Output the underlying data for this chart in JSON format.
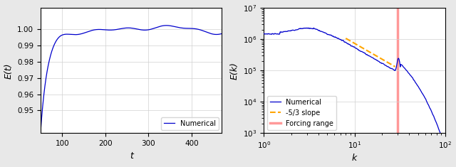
{
  "left": {
    "xlabel": "t",
    "ylabel": "E(t)",
    "xlim": [
      50,
      470
    ],
    "ylim": [
      0.936,
      1.013
    ],
    "yticks": [
      0.95,
      0.96,
      0.97,
      0.98,
      0.99,
      1.0
    ],
    "xticks": [
      100,
      200,
      300,
      400
    ],
    "line_color": "#0000cc",
    "legend_label": "Numerical",
    "legend_loc": "lower right"
  },
  "right": {
    "xlabel": "k",
    "ylabel": "E(k)",
    "xlim": [
      1,
      100
    ],
    "ylim": [
      1000.0,
      10000000.0
    ],
    "line_color": "#0000cc",
    "slope_color": "#FFA500",
    "forcing_color": "#FF9999",
    "forcing_x": 30,
    "legend_labels": [
      "Numerical",
      "-5/3 slope",
      "Forcing range"
    ],
    "legend_loc": "lower left"
  },
  "bg_color": "#e8e8e8",
  "plot_bg": "#ffffff"
}
